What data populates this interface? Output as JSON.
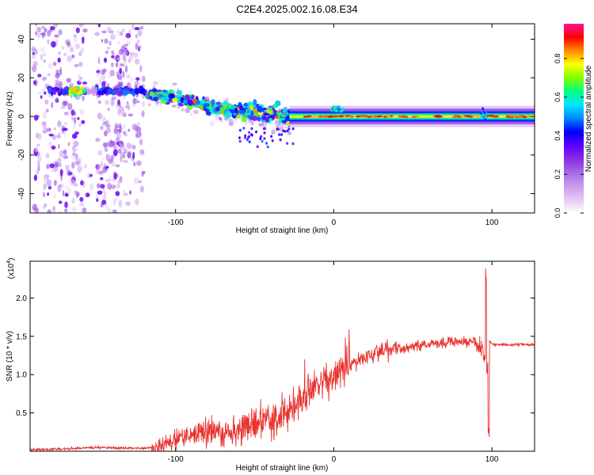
{
  "figure": {
    "title": "C2E4.2025.002.16.08.E34"
  },
  "colors": {
    "signal_red": "#e8322e",
    "axis": "#000000",
    "colormap": [
      "#ffffff",
      "#e4c8f5",
      "#c89bef",
      "#a56ae8",
      "#8a2be2",
      "#5a00ff",
      "#0000ff",
      "#0088ff",
      "#00e5ff",
      "#00ff7f",
      "#7fff00",
      "#ffff00",
      "#ff8c00",
      "#ff0000",
      "#ff1493"
    ]
  },
  "chart_data": [
    {
      "type": "heatmap",
      "name": "spectrogram",
      "xlabel": "Height of straight line (km)",
      "ylabel": "Frequency (Hz)",
      "xlim": [
        -192,
        127
      ],
      "ylim": [
        -50,
        48
      ],
      "xticks": [
        -100,
        0,
        100
      ],
      "yticks": [
        40,
        20,
        0,
        -20,
        -40
      ],
      "colorbar": {
        "label": "Normalized spectral amplitude",
        "range": [
          0,
          0.98
        ],
        "ticks": [
          "0.0",
          "0.2",
          "0.4",
          "0.6",
          "0.8"
        ],
        "tick_values": [
          0,
          0.2,
          0.4,
          0.6,
          0.8
        ]
      },
      "features": [
        {
          "name": "upper-tone",
          "x_range": [
            -180,
            -118
          ],
          "freq_hz": 13,
          "amplitude": 0.45
        },
        {
          "name": "descending-band",
          "x_range": [
            -118,
            -30
          ],
          "freq_hz_start": 11,
          "freq_hz_end": -4,
          "amplitude": 0.55
        },
        {
          "name": "carrier-line",
          "x_range": [
            -30,
            127
          ],
          "freq_hz": 0,
          "amplitude": 0.9
        }
      ]
    },
    {
      "type": "line",
      "name": "snr",
      "xlabel": "Height of straight line (km)",
      "ylabel": "SNR (10 * v/v)",
      "yscale_label": "(x10",
      "yscale_exponent": "4",
      "xlim": [
        -192,
        127
      ],
      "ylim": [
        0,
        2.48
      ],
      "xticks": [
        -100,
        0,
        100
      ],
      "yticks": [
        0.5,
        1.0,
        1.5,
        2.0
      ],
      "ytick_labels": [
        "0.5",
        "1.0",
        "1.5",
        "2.0"
      ],
      "series": [
        {
          "name": "SNR",
          "x": [
            -192,
            -170,
            -150,
            -130,
            -120,
            -110,
            -100,
            -90,
            -80,
            -70,
            -60,
            -50,
            -40,
            -30,
            -25,
            -20,
            -15,
            -10,
            0,
            10,
            20,
            30,
            40,
            50,
            60,
            70,
            80,
            90,
            95,
            97,
            98,
            100,
            110,
            120,
            127
          ],
          "values": [
            0.02,
            0.03,
            0.05,
            0.04,
            0.04,
            0.06,
            0.15,
            0.22,
            0.25,
            0.24,
            0.3,
            0.35,
            0.42,
            0.48,
            0.55,
            0.65,
            0.85,
            0.92,
            1.0,
            1.12,
            1.25,
            1.3,
            1.35,
            1.37,
            1.4,
            1.42,
            1.43,
            1.42,
            1.3,
            1.0,
            1.45,
            1.4,
            1.39,
            1.39,
            1.39
          ]
        }
      ],
      "annotations": [
        {
          "x": 96,
          "y": 2.4,
          "note": "spike"
        },
        {
          "x": 98,
          "y": 0.15,
          "note": "dip"
        }
      ]
    }
  ]
}
